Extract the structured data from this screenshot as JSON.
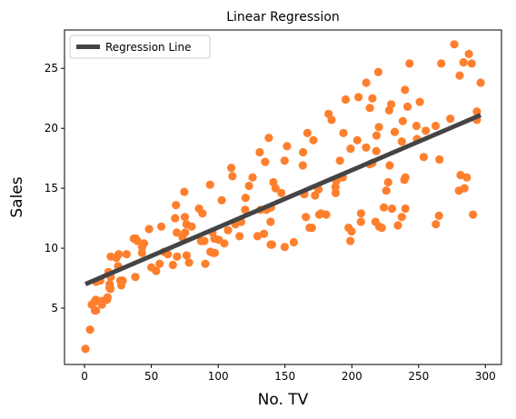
{
  "chart_data": {
    "type": "scatter",
    "title": "Linear Regression",
    "xlabel": "No. TV",
    "ylabel": "Sales",
    "xlim": [
      -15,
      312
    ],
    "ylim": [
      0.3,
      28.2
    ],
    "xticks": [
      0,
      50,
      100,
      150,
      200,
      250,
      300
    ],
    "yticks": [
      5,
      10,
      15,
      20,
      25
    ],
    "grid": false,
    "legend": {
      "entries": [
        "Regression Line"
      ],
      "placement": "top-left"
    },
    "colors": {
      "points": "#fe7f2d",
      "line": "#444444"
    },
    "regression_line": {
      "name": "Regression Line",
      "x": [
        0.7,
        296.4
      ],
      "y": [
        7.0,
        21.1
      ]
    },
    "points": [
      [
        0.7,
        1.6
      ],
      [
        4.1,
        3.2
      ],
      [
        5.4,
        5.3
      ],
      [
        7.3,
        5.5
      ],
      [
        7.8,
        4.8
      ],
      [
        8.4,
        5.7
      ],
      [
        8.6,
        4.8
      ],
      [
        8.7,
        7.2
      ],
      [
        11.7,
        7.3
      ],
      [
        13.1,
        5.3
      ],
      [
        13.2,
        5.6
      ],
      [
        16.9,
        5.7
      ],
      [
        17.2,
        5.9
      ],
      [
        17.9,
        8.0
      ],
      [
        18.7,
        6.7
      ],
      [
        18.8,
        7.0
      ],
      [
        19.4,
        6.6
      ],
      [
        19.6,
        7.6
      ],
      [
        19.6,
        9.3
      ],
      [
        23.8,
        9.2
      ],
      [
        25.1,
        8.5
      ],
      [
        25.6,
        9.5
      ],
      [
        26.8,
        7.3
      ],
      [
        27.5,
        6.9
      ],
      [
        28.6,
        7.3
      ],
      [
        31.5,
        9.5
      ],
      [
        36.9,
        10.8
      ],
      [
        38.0,
        7.6
      ],
      [
        38.2,
        10.8
      ],
      [
        39.5,
        10.6
      ],
      [
        43.0,
        9.6
      ],
      [
        43.1,
        10.1
      ],
      [
        44.5,
        10.4
      ],
      [
        48.3,
        11.6
      ],
      [
        50.0,
        8.4
      ],
      [
        53.5,
        8.1
      ],
      [
        56.2,
        8.7
      ],
      [
        57.5,
        11.8
      ],
      [
        59.6,
        9.7
      ],
      [
        62.3,
        9.5
      ],
      [
        66.1,
        8.6
      ],
      [
        67.8,
        12.5
      ],
      [
        68.4,
        13.6
      ],
      [
        69.0,
        11.3
      ],
      [
        69.2,
        9.3
      ],
      [
        73.4,
        10.9
      ],
      [
        74.7,
        14.7
      ],
      [
        75.1,
        12.6
      ],
      [
        75.3,
        11.3
      ],
      [
        76.3,
        12.0
      ],
      [
        76.4,
        9.4
      ],
      [
        78.2,
        8.8
      ],
      [
        80.2,
        11.8
      ],
      [
        85.7,
        13.3
      ],
      [
        87.2,
        10.6
      ],
      [
        88.3,
        12.9
      ],
      [
        89.7,
        10.6
      ],
      [
        90.4,
        8.7
      ],
      [
        93.9,
        15.3
      ],
      [
        94.2,
        9.7
      ],
      [
        95.7,
        11.3
      ],
      [
        96.2,
        9.6
      ],
      [
        97.2,
        10.8
      ],
      [
        97.5,
        9.6
      ],
      [
        100.4,
        10.7
      ],
      [
        102.7,
        14.0
      ],
      [
        104.6,
        10.4
      ],
      [
        107.4,
        11.5
      ],
      [
        109.8,
        16.7
      ],
      [
        110.7,
        16.0
      ],
      [
        112.9,
        12.0
      ],
      [
        116.0,
        11.0
      ],
      [
        117.2,
        12.2
      ],
      [
        120.2,
        13.2
      ],
      [
        120.5,
        14.2
      ],
      [
        123.1,
        15.2
      ],
      [
        125.7,
        15.9
      ],
      [
        129.4,
        11.0
      ],
      [
        131.1,
        18.0
      ],
      [
        131.7,
        13.2
      ],
      [
        134.3,
        11.2
      ],
      [
        135.2,
        17.2
      ],
      [
        136.2,
        13.2
      ],
      [
        137.9,
        19.2
      ],
      [
        139.2,
        12.2
      ],
      [
        139.3,
        10.3
      ],
      [
        139.5,
        13.4
      ],
      [
        140.3,
        10.3
      ],
      [
        141.3,
        15.5
      ],
      [
        142.9,
        15.0
      ],
      [
        147.3,
        14.6
      ],
      [
        149.7,
        17.3
      ],
      [
        149.8,
        10.1
      ],
      [
        151.5,
        18.5
      ],
      [
        156.6,
        10.5
      ],
      [
        163.3,
        16.9
      ],
      [
        163.5,
        18.0
      ],
      [
        164.5,
        14.5
      ],
      [
        165.6,
        12.6
      ],
      [
        166.8,
        19.6
      ],
      [
        168.4,
        11.7
      ],
      [
        170.2,
        11.7
      ],
      [
        171.3,
        19.0
      ],
      [
        172.5,
        14.4
      ],
      [
        175.1,
        14.9
      ],
      [
        175.7,
        12.8
      ],
      [
        177.0,
        12.9
      ],
      [
        180.8,
        12.8
      ],
      [
        182.6,
        21.2
      ],
      [
        184.9,
        20.7
      ],
      [
        187.8,
        15.1
      ],
      [
        187.9,
        14.6
      ],
      [
        188.4,
        15.6
      ],
      [
        191.1,
        17.3
      ],
      [
        193.2,
        15.9
      ],
      [
        193.7,
        19.6
      ],
      [
        195.4,
        22.4
      ],
      [
        197.6,
        11.7
      ],
      [
        198.9,
        10.6
      ],
      [
        199.1,
        18.3
      ],
      [
        199.8,
        11.4
      ],
      [
        204.1,
        19.0
      ],
      [
        205.0,
        22.6
      ],
      [
        206.8,
        12.2
      ],
      [
        206.9,
        12.9
      ],
      [
        210.7,
        18.4
      ],
      [
        210.8,
        23.8
      ],
      [
        213.4,
        17.0
      ],
      [
        213.5,
        21.7
      ],
      [
        215.4,
        22.5
      ],
      [
        215.4,
        17.1
      ],
      [
        217.7,
        12.2
      ],
      [
        218.4,
        18.1
      ],
      [
        218.5,
        19.4
      ],
      [
        219.8,
        24.7
      ],
      [
        220.3,
        20.1
      ],
      [
        220.5,
        11.8
      ],
      [
        222.4,
        11.7
      ],
      [
        224.0,
        13.4
      ],
      [
        225.8,
        14.8
      ],
      [
        227.2,
        15.5
      ],
      [
        228.0,
        21.5
      ],
      [
        228.3,
        16.9
      ],
      [
        229.5,
        22.0
      ],
      [
        230.1,
        13.3
      ],
      [
        232.1,
        19.7
      ],
      [
        234.5,
        11.9
      ],
      [
        237.4,
        12.6
      ],
      [
        237.4,
        18.9
      ],
      [
        238.2,
        20.6
      ],
      [
        239.3,
        15.7
      ],
      [
        239.8,
        23.2
      ],
      [
        240.1,
        13.3
      ],
      [
        240.1,
        15.9
      ],
      [
        241.7,
        21.8
      ],
      [
        243.2,
        25.4
      ],
      [
        248.4,
        20.2
      ],
      [
        248.8,
        19.1
      ],
      [
        250.9,
        22.2
      ],
      [
        253.8,
        17.6
      ],
      [
        255.4,
        19.8
      ],
      [
        262.7,
        20.2
      ],
      [
        262.9,
        12.0
      ],
      [
        265.2,
        12.7
      ],
      [
        265.6,
        17.4
      ],
      [
        266.9,
        25.4
      ],
      [
        273.7,
        20.8
      ],
      [
        276.7,
        27.0
      ],
      [
        280.2,
        14.8
      ],
      [
        280.7,
        24.4
      ],
      [
        281.4,
        16.1
      ],
      [
        283.6,
        25.5
      ],
      [
        284.3,
        15.0
      ],
      [
        286.0,
        15.9
      ],
      [
        287.6,
        26.2
      ],
      [
        289.7,
        25.4
      ],
      [
        290.7,
        12.8
      ],
      [
        293.6,
        20.7
      ],
      [
        293.6,
        21.4
      ],
      [
        296.4,
        23.8
      ]
    ]
  }
}
